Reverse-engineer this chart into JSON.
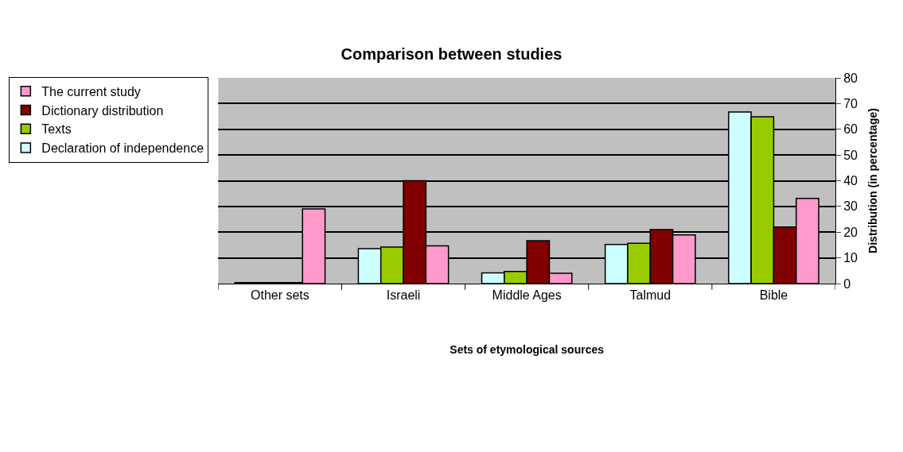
{
  "chart_data": {
    "type": "bar",
    "title": "Comparison between studies",
    "xlabel": "Sets of etymological sources",
    "ylabel": "Distribution (in percentage)",
    "categories": [
      "Other sets",
      "Israeli",
      "Middle Ages",
      "Talmud",
      "Bible"
    ],
    "series": [
      {
        "name": "Declaration of independence",
        "color": "#ccffff",
        "values": [
          0.4,
          13.6,
          4.2,
          15.2,
          66.7
        ]
      },
      {
        "name": "Texts",
        "color": "#99cc00",
        "values": [
          0.4,
          14.2,
          4.7,
          15.7,
          64.9
        ]
      },
      {
        "name": "Dictionary distribution",
        "color": "#800000",
        "values": [
          0.4,
          40,
          16.7,
          21,
          22
        ]
      },
      {
        "name": "The current study",
        "color": "#ff99cc",
        "values": [
          29,
          14.7,
          4,
          18.9,
          33.1
        ]
      }
    ],
    "ylim": [
      0,
      80
    ],
    "yticks": [
      0,
      10,
      20,
      30,
      40,
      50,
      60,
      70,
      80
    ],
    "grid": "y",
    "legend": "left"
  }
}
